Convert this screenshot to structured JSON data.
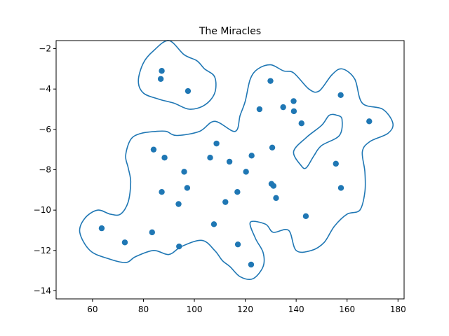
{
  "chart_data": {
    "type": "scatter",
    "title": "The Miracles",
    "xlabel": "",
    "ylabel": "",
    "xlim": [
      45.7,
      182.4
    ],
    "ylim": [
      -14.4,
      -1.6
    ],
    "xticks": [
      60,
      80,
      100,
      120,
      140,
      160,
      180
    ],
    "yticks": [
      -14,
      -12,
      -10,
      -8,
      -6,
      -4,
      -2
    ],
    "grid": false,
    "colors": {
      "points": "#1f77b4",
      "outline": "#1f77b4"
    },
    "points": [
      {
        "x": 87.2,
        "y": -3.1
      },
      {
        "x": 86.8,
        "y": -3.5
      },
      {
        "x": 97.5,
        "y": -4.1
      },
      {
        "x": 129.9,
        "y": -3.6
      },
      {
        "x": 125.6,
        "y": -5.0
      },
      {
        "x": 134.9,
        "y": -4.9
      },
      {
        "x": 139.0,
        "y": -4.6
      },
      {
        "x": 139.1,
        "y": -5.1
      },
      {
        "x": 142.1,
        "y": -5.7
      },
      {
        "x": 157.5,
        "y": -4.3
      },
      {
        "x": 168.7,
        "y": -5.6
      },
      {
        "x": 84.0,
        "y": -7.0
      },
      {
        "x": 88.3,
        "y": -7.4
      },
      {
        "x": 108.7,
        "y": -6.7
      },
      {
        "x": 106.2,
        "y": -7.4
      },
      {
        "x": 113.8,
        "y": -7.6
      },
      {
        "x": 122.5,
        "y": -7.3
      },
      {
        "x": 130.6,
        "y": -6.9
      },
      {
        "x": 155.6,
        "y": -7.7
      },
      {
        "x": 96.0,
        "y": -8.1
      },
      {
        "x": 120.3,
        "y": -8.1
      },
      {
        "x": 87.2,
        "y": -9.1
      },
      {
        "x": 97.2,
        "y": -8.9
      },
      {
        "x": 116.9,
        "y": -9.1
      },
      {
        "x": 130.3,
        "y": -8.7
      },
      {
        "x": 131.1,
        "y": -8.8
      },
      {
        "x": 157.6,
        "y": -8.9
      },
      {
        "x": 93.8,
        "y": -9.7
      },
      {
        "x": 112.2,
        "y": -9.6
      },
      {
        "x": 132.1,
        "y": -9.4
      },
      {
        "x": 143.8,
        "y": -10.3
      },
      {
        "x": 63.6,
        "y": -10.9
      },
      {
        "x": 83.4,
        "y": -11.1
      },
      {
        "x": 107.7,
        "y": -10.7
      },
      {
        "x": 72.7,
        "y": -11.6
      },
      {
        "x": 94.0,
        "y": -11.8
      },
      {
        "x": 117.1,
        "y": -11.7
      },
      {
        "x": 122.3,
        "y": -12.7
      }
    ],
    "outlines": [
      [
        [
          90,
          -1.6
        ],
        [
          96,
          -2.3
        ],
        [
          101,
          -2.6
        ],
        [
          104,
          -3.0
        ],
        [
          108,
          -3.4
        ],
        [
          108,
          -4.2
        ],
        [
          104,
          -4.8
        ],
        [
          98,
          -5.0
        ],
        [
          92,
          -4.7
        ],
        [
          86,
          -4.5
        ],
        [
          80,
          -4.2
        ],
        [
          78,
          -3.6
        ],
        [
          80,
          -2.7
        ],
        [
          84,
          -2.1
        ],
        [
          90,
          -1.6
        ]
      ],
      [
        [
          93,
          -6.3
        ],
        [
          102,
          -6.1
        ],
        [
          108,
          -5.6
        ],
        [
          116,
          -6.1
        ],
        [
          118,
          -5.3
        ],
        [
          120,
          -4.6
        ],
        [
          122,
          -3.5
        ],
        [
          125,
          -3.0
        ],
        [
          130,
          -2.8
        ],
        [
          135,
          -3.1
        ],
        [
          139,
          -3.2
        ],
        [
          145,
          -4.0
        ],
        [
          149,
          -4.1
        ],
        [
          154,
          -3.3
        ],
        [
          158,
          -3.0
        ],
        [
          163,
          -3.5
        ],
        [
          166,
          -4.7
        ],
        [
          174,
          -5.0
        ],
        [
          178,
          -5.7
        ],
        [
          176,
          -6.2
        ],
        [
          169,
          -6.6
        ],
        [
          166,
          -7.1
        ],
        [
          167,
          -8.1
        ],
        [
          167,
          -9.1
        ],
        [
          165,
          -10.0
        ],
        [
          160,
          -10.2
        ],
        [
          155,
          -10.8
        ],
        [
          151,
          -11.6
        ],
        [
          146,
          -12.0
        ],
        [
          140,
          -12.0
        ],
        [
          137,
          -11.0
        ],
        [
          131,
          -11.1
        ],
        [
          128,
          -10.7
        ],
        [
          122,
          -10.6
        ],
        [
          124,
          -11.4
        ],
        [
          127,
          -12.1
        ],
        [
          127,
          -12.8
        ],
        [
          123,
          -13.4
        ],
        [
          118,
          -13.3
        ],
        [
          114,
          -12.8
        ],
        [
          111,
          -12.5
        ],
        [
          108,
          -12.0
        ],
        [
          103,
          -11.5
        ],
        [
          95,
          -11.8
        ],
        [
          90,
          -12.2
        ],
        [
          84,
          -12.0
        ],
        [
          77,
          -12.3
        ],
        [
          73,
          -12.6
        ],
        [
          66,
          -12.4
        ],
        [
          59,
          -12.0
        ],
        [
          55,
          -11.1
        ],
        [
          57,
          -10.4
        ],
        [
          62,
          -10.0
        ],
        [
          67,
          -10.2
        ],
        [
          71,
          -10.2
        ],
        [
          74,
          -9.6
        ],
        [
          75,
          -8.6
        ],
        [
          74,
          -7.9
        ],
        [
          73,
          -7.3
        ],
        [
          75,
          -6.5
        ],
        [
          79,
          -6.2
        ],
        [
          85,
          -6.1
        ],
        [
          89,
          -6.1
        ],
        [
          93,
          -6.3
        ]
      ],
      [
        [
          139,
          -7.1
        ],
        [
          144,
          -6.4
        ],
        [
          150,
          -5.8
        ],
        [
          153,
          -5.3
        ],
        [
          156,
          -5.3
        ],
        [
          158,
          -5.5
        ],
        [
          157,
          -6.3
        ],
        [
          150,
          -6.8
        ],
        [
          147,
          -7.3
        ],
        [
          144,
          -7.9
        ],
        [
          142,
          -7.8
        ],
        [
          139,
          -7.1
        ]
      ]
    ]
  }
}
